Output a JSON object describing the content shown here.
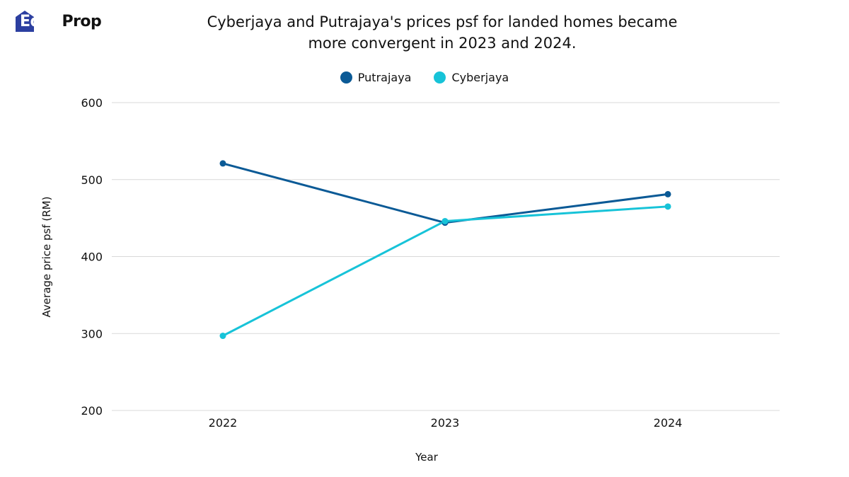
{
  "brand": {
    "edge": "Edge",
    "prop": "Prop"
  },
  "chart_data": {
    "type": "line",
    "title": "Cyberjaya and Putrajaya's prices psf for landed homes became more convergent in 2023 and 2024.",
    "title_lines": [
      "Cyberjaya and Putrajaya's prices psf for landed homes became",
      "more convergent in 2023 and 2024."
    ],
    "xlabel": "Year",
    "ylabel": "Average price psf  (RM)",
    "x": [
      "2022",
      "2023",
      "2024"
    ],
    "ylim": [
      200,
      600
    ],
    "yticks": [
      200,
      300,
      400,
      500,
      600
    ],
    "grid": true,
    "legend_position": "top-center",
    "series": [
      {
        "name": "Putrajaya",
        "color": "#0b5a96",
        "values": [
          521,
          444,
          481
        ]
      },
      {
        "name": "Cyberjaya",
        "color": "#17c3d8",
        "values": [
          297,
          446,
          465
        ]
      }
    ]
  }
}
